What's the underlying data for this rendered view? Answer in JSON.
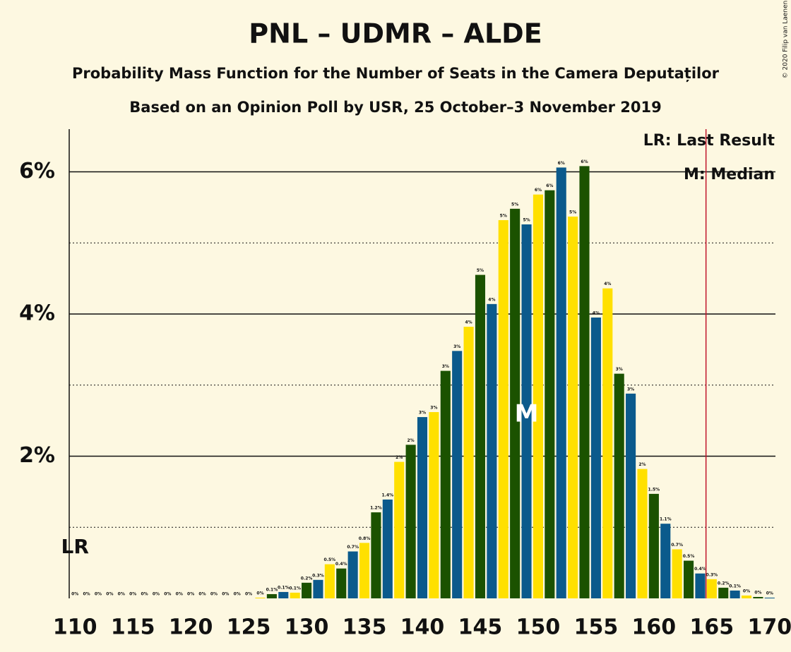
{
  "chart_data": {
    "type": "bar",
    "title": "PNL – UDMR – ALDE",
    "subtitle": "Probability Mass Function for the Number of Seats in the Camera Deputaților",
    "subtitle2": "Based on an Opinion Poll by USR, 25 October–3 November 2019",
    "copyright": "© 2020 Filip van Laenen",
    "legend": [
      "LR: Last Result",
      "M: Median"
    ],
    "last_result": 110,
    "last_result_label": "LR",
    "median": 149,
    "median_label": "M",
    "majority": 165,
    "majority_color": "#c0142a",
    "colors": [
      "#0b5a8c",
      "#ffe000",
      "#1b5200"
    ],
    "x": [
      110,
      111,
      112,
      113,
      114,
      115,
      116,
      117,
      118,
      119,
      120,
      121,
      122,
      123,
      124,
      125,
      126,
      127,
      128,
      129,
      130,
      131,
      132,
      133,
      134,
      135,
      136,
      137,
      138,
      139,
      140,
      141,
      142,
      143,
      144,
      145,
      146,
      147,
      148,
      149,
      150,
      151,
      152,
      153,
      154,
      155,
      156,
      157,
      158,
      159,
      160,
      161,
      162,
      163,
      164,
      165,
      166,
      167,
      168,
      169,
      170
    ],
    "values": [
      0,
      0,
      0,
      0,
      0,
      0,
      0,
      0,
      0,
      0,
      0,
      0,
      0,
      0,
      0,
      0,
      0.01,
      0.06,
      0.09,
      0.08,
      0.22,
      0.26,
      0.48,
      0.42,
      0.66,
      0.78,
      1.21,
      1.39,
      1.92,
      2.16,
      2.55,
      2.62,
      3.2,
      3.48,
      3.82,
      4.55,
      4.14,
      5.32,
      5.48,
      5.26,
      5.68,
      5.74,
      6.06,
      5.37,
      6.08,
      3.95,
      4.36,
      3.16,
      2.88,
      1.82,
      1.47,
      1.05,
      0.69,
      0.53,
      0.35,
      0.27,
      0.15,
      0.11,
      0.04,
      0.02,
      0.01
    ],
    "value_labels": [
      "0%",
      "0%",
      "0%",
      "0%",
      "0%",
      "0%",
      "0%",
      "0%",
      "0%",
      "0%",
      "0%",
      "0%",
      "0%",
      "0%",
      "0%",
      "0%",
      "0%",
      "0.1%",
      "0.1%",
      "0.1%",
      "0.2%",
      "0.3%",
      "0.5%",
      "0.4%",
      "0.7%",
      "0.8%",
      "1.2%",
      "1.4%",
      "2%",
      "2%",
      "3%",
      "3%",
      "3%",
      "3%",
      "4%",
      "5%",
      "4%",
      "5%",
      "5%",
      "5%",
      "6%",
      "6%",
      "6%",
      "5%",
      "6%",
      "4%",
      "4%",
      "3%",
      "3%",
      "2%",
      "1.5%",
      "1.1%",
      "0.7%",
      "0.5%",
      "0.4%",
      "0.3%",
      "0.2%",
      "0.1%",
      "0%",
      "0%",
      "0%"
    ],
    "xlim": [
      109.5,
      170.5
    ],
    "xticks": [
      110,
      115,
      120,
      125,
      130,
      135,
      140,
      145,
      150,
      155,
      160,
      165,
      170
    ],
    "ylim": [
      0,
      6.6
    ],
    "yticks": [
      {
        "value": 2,
        "label": "2%"
      },
      {
        "value": 4,
        "label": "4%"
      },
      {
        "value": 6,
        "label": "6%"
      }
    ],
    "minor_yticks": [
      1,
      3,
      5
    ],
    "grid": true
  }
}
